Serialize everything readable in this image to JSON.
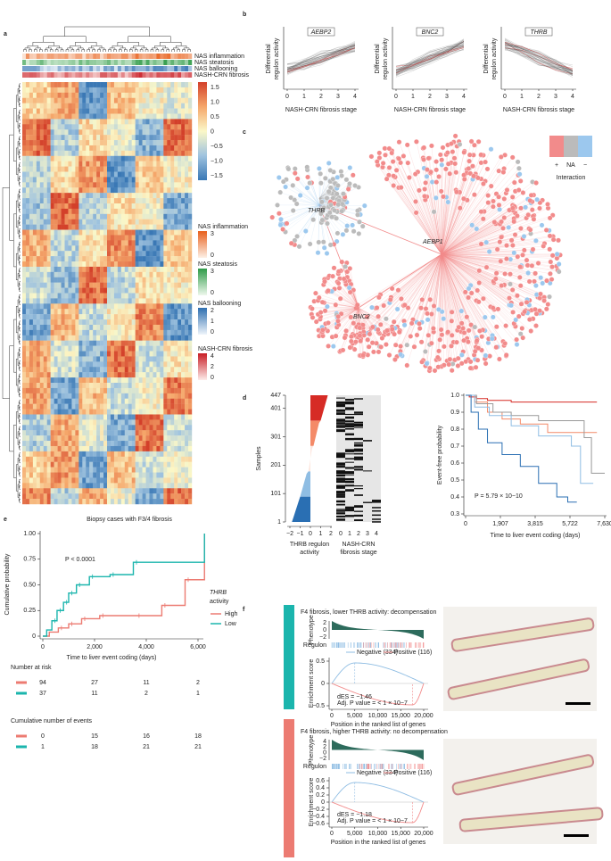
{
  "panel_labels": [
    "a",
    "b",
    "c",
    "d",
    "e",
    "f"
  ],
  "a": {
    "annotation_rows": [
      "NAS inflammation",
      "NAS steatosis",
      "NAS ballooning",
      "NASH-CRN fibrosis"
    ],
    "colorbar_ticks": [
      "1.5",
      "1.0",
      "0.5",
      "0",
      "−0.5",
      "−1.0",
      "−1.5"
    ],
    "legends": [
      {
        "title": "NAS inflammation",
        "ticks": [
          "3",
          "0"
        ]
      },
      {
        "title": "NAS steatosis",
        "ticks": [
          "3",
          "0"
        ]
      },
      {
        "title": "NAS ballooning",
        "ticks": [
          "2",
          "1",
          "0"
        ]
      },
      {
        "title": "NASH-CRN fibrosis",
        "ticks": [
          "4",
          "2",
          "0"
        ]
      }
    ]
  },
  "b": {
    "genes": [
      "AEBP2",
      "BNC2",
      "THRB"
    ],
    "y_label": [
      "Differential",
      "regulon activity"
    ],
    "x_ticks": [
      "0",
      "1",
      "2",
      "3",
      "4"
    ],
    "x_label": "NASH-CRN fibrosis stage"
  },
  "c": {
    "hubs": [
      "THRB",
      "AEBP1",
      "BNC2"
    ],
    "legend_items": [
      "+",
      "NA",
      "−"
    ],
    "legend_title": "Interaction"
  },
  "d": {
    "y_label": "Samples",
    "y_ticks": [
      "447",
      "401",
      "301",
      "201",
      "101",
      "1"
    ],
    "activity_ticks": [
      "−2",
      "−1",
      "0",
      "1",
      "2"
    ],
    "activity_label": [
      "THRB regulon",
      "activity"
    ],
    "stage_ticks": [
      "0",
      "1",
      "2",
      "3",
      "4"
    ],
    "stage_label": [
      "NASH-CRN",
      "fibrosis stage"
    ],
    "km_y_label": "Event-free probability",
    "km_y_ticks": [
      "1.0",
      "0.9",
      "0.8",
      "0.7",
      "0.6",
      "0.5",
      "0.4",
      "0.3"
    ],
    "km_x_ticks": [
      "0",
      "1,907",
      "3,815",
      "5,722",
      "7,630"
    ],
    "km_x_label": "Time to liver event coding (days)",
    "p_value": "P = 5.79 × 10−10"
  },
  "e": {
    "title": "Biopsy cases with F3/4 fibrosis",
    "y_label": "Cumulative probability",
    "y_ticks": [
      "1.00",
      "0.75",
      "0.50",
      "0.25",
      "0"
    ],
    "x_ticks": [
      "0",
      "2,000",
      "4,000",
      "6,000"
    ],
    "x_label": "Time to liver event coding (days)",
    "p_value": "P < 0.0001",
    "legend_title": [
      "THRB",
      "activity"
    ],
    "groups": [
      "High",
      "Low"
    ],
    "risk_title": "Number at risk",
    "risk_rows": [
      [
        "94",
        "27",
        "11",
        "2"
      ],
      [
        "37",
        "11",
        "2",
        "1"
      ]
    ],
    "events_title": "Cumulative number of events",
    "events_rows": [
      [
        "0",
        "15",
        "16",
        "18"
      ],
      [
        "1",
        "18",
        "21",
        "21"
      ]
    ]
  },
  "f": {
    "y_labels": {
      "phenotype": "Phenotype",
      "regulon": "Regulon",
      "es": "Enrichment score"
    },
    "x_ticks": [
      "0",
      "5,000",
      "10,000",
      "15,000",
      "20,000"
    ],
    "x_label": "Position in the ranked list of genes",
    "legend": [
      "Negative (334)",
      "Positive (116)"
    ],
    "panels": [
      {
        "title": "F4 fibrosis, lower THRB activity: decompensation",
        "phenotype_ticks": [
          "2",
          "0",
          "−2"
        ],
        "es_ticks": [
          "0.5",
          "0",
          "−0.5"
        ],
        "stats": [
          "dES = −1.46",
          "Adj. P value = < 1 × 10−7"
        ]
      },
      {
        "title": "F4 fibrosis, higher THRB activity: no decompensation",
        "phenotype_ticks": [
          "4",
          "2",
          "0",
          "−2"
        ],
        "es_ticks": [
          "0.6",
          "0.4",
          "0.2",
          "0",
          "−0.2",
          "−0.4",
          "−0.6"
        ],
        "stats": [
          "dES = −1.18",
          "Adj. P value = < 1 × 10−7"
        ]
      }
    ]
  }
}
